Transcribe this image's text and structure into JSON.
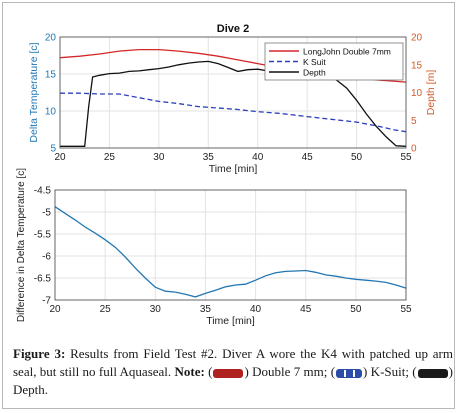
{
  "chart_data": [
    {
      "type": "line",
      "title": "Dive 2",
      "xlabel": "Time [min]",
      "ylabel_left": "Delta Temperature [c]",
      "ylabel_right": "Depth [m]",
      "xlim": [
        20,
        55
      ],
      "ylim_left": [
        5,
        20
      ],
      "ylim_right": [
        0,
        20
      ],
      "xticks": [
        "20",
        "25",
        "30",
        "35",
        "40",
        "45",
        "50",
        "55"
      ],
      "yticks_left": [
        "5",
        "10",
        "15",
        "20"
      ],
      "yticks_right": [
        "0",
        "5",
        "10",
        "15",
        "20"
      ],
      "grid": true,
      "legend_position": "top-right",
      "series": [
        {
          "name": "LongJohn Double 7mm",
          "axis": "left",
          "color": "#d62728",
          "style": "solid",
          "x": [
            20,
            22,
            24,
            26,
            28,
            30,
            32,
            34,
            36,
            38,
            40,
            42,
            44,
            46,
            48,
            50,
            52,
            54,
            55
          ],
          "y": [
            17.2,
            17.4,
            17.7,
            18.1,
            18.3,
            18.3,
            18.1,
            17.8,
            17.4,
            16.9,
            16.4,
            15.9,
            15.5,
            15.1,
            14.8,
            14.5,
            14.2,
            14.0,
            13.9
          ]
        },
        {
          "name": "K Suit",
          "axis": "left",
          "color": "#2b3fbf",
          "style": "dashed",
          "x": [
            20,
            22,
            24,
            26,
            28,
            30,
            32,
            34,
            36,
            38,
            40,
            42,
            44,
            46,
            48,
            50,
            52,
            54,
            55
          ],
          "y": [
            12.4,
            12.4,
            12.3,
            12.3,
            11.8,
            11.3,
            11.0,
            10.6,
            10.4,
            10.2,
            9.9,
            9.7,
            9.4,
            9.1,
            8.8,
            8.5,
            8.0,
            7.4,
            7.2
          ]
        },
        {
          "name": "Depth",
          "axis": "right",
          "color": "#111111",
          "style": "solid",
          "x": [
            20,
            21,
            22.5,
            22.9,
            23.3,
            24,
            25,
            26,
            27,
            28,
            29,
            30,
            31,
            32,
            33,
            34,
            35,
            36,
            37,
            38,
            39,
            40,
            41,
            42,
            43,
            44,
            45,
            46,
            47,
            48,
            49,
            50,
            51,
            52,
            53,
            54,
            55
          ],
          "y": [
            0.3,
            0.3,
            0.3,
            7.5,
            12.8,
            13.1,
            13.4,
            13.5,
            13.8,
            13.9,
            14.1,
            14.3,
            14.6,
            15.0,
            15.3,
            15.5,
            15.6,
            15.2,
            14.5,
            13.8,
            14.1,
            14.2,
            13.9,
            13.6,
            14.0,
            13.8,
            13.9,
            13.5,
            13.6,
            12.2,
            10.8,
            8.6,
            6.1,
            3.9,
            2.0,
            0.4,
            0.3
          ]
        }
      ]
    },
    {
      "type": "line",
      "title": "",
      "xlabel": "Time [min]",
      "ylabel": "Difference in Delta Temperature [c]",
      "xlim": [
        20,
        55
      ],
      "ylim": [
        -7,
        -4.5
      ],
      "xticks": [
        "20",
        "25",
        "30",
        "35",
        "40",
        "45",
        "50",
        "55"
      ],
      "yticks": [
        "-7",
        "-6.5",
        "-6",
        "-5.5",
        "-5",
        "-4.5"
      ],
      "grid": true,
      "series": [
        {
          "color": "#2277b3",
          "x": [
            20,
            21,
            22,
            23,
            24,
            25,
            26,
            27,
            28,
            29,
            30,
            31,
            32,
            33,
            34,
            35,
            36,
            37,
            38,
            39,
            40,
            41,
            42,
            43,
            44,
            45,
            46,
            47,
            48,
            49,
            50,
            51,
            52,
            53,
            54,
            55
          ],
          "y": [
            -4.88,
            -5.03,
            -5.18,
            -5.34,
            -5.48,
            -5.63,
            -5.8,
            -6.02,
            -6.27,
            -6.5,
            -6.71,
            -6.8,
            -6.82,
            -6.87,
            -6.93,
            -6.85,
            -6.78,
            -6.7,
            -6.66,
            -6.64,
            -6.55,
            -6.45,
            -6.38,
            -6.35,
            -6.34,
            -6.33,
            -6.37,
            -6.43,
            -6.46,
            -6.5,
            -6.53,
            -6.55,
            -6.57,
            -6.6,
            -6.66,
            -6.73
          ]
        }
      ]
    }
  ],
  "caption": {
    "figure_label": "Figure 3:",
    "text_1": " Results from Field Test #2. Diver A wore the K4 with patched up arm seal, but still no full Aquaseal. ",
    "note_label": "Note:",
    "text_2": " (",
    "text_3": ") Double 7 mm; (",
    "text_4": ") K-Suit; (",
    "text_5": ") Depth.",
    "swatch_colors": [
      "#b0221f",
      "#2b4ca8",
      "#1a1a1a"
    ]
  }
}
